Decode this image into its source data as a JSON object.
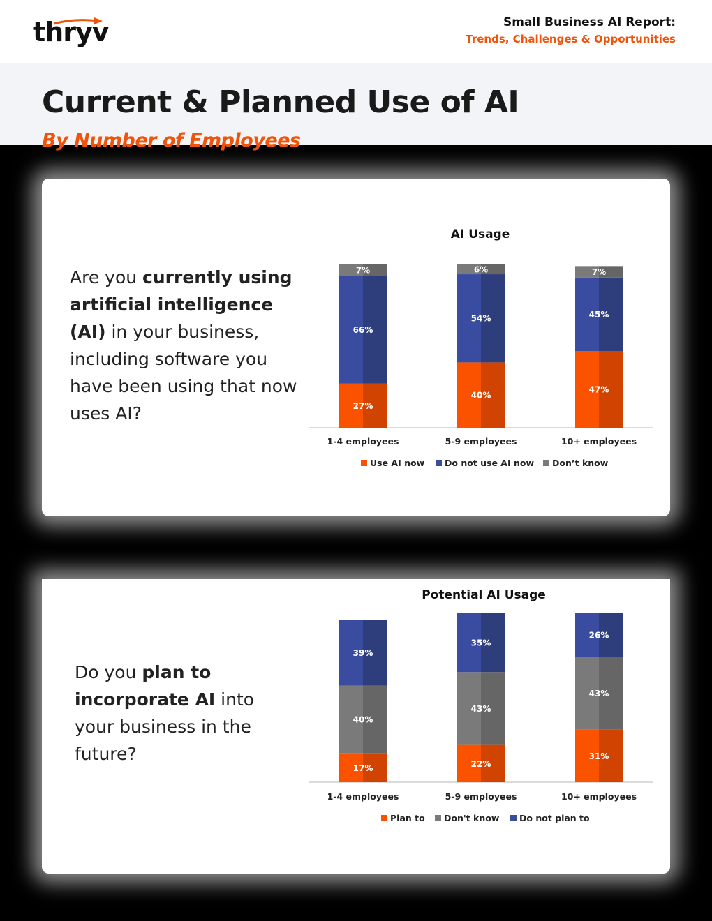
{
  "header": {
    "logo": "thryv",
    "report_title": "Small Business AI Report:",
    "report_subtitle": "Trends, Challenges & Opportunities"
  },
  "page": {
    "title": "Current & Planned Use of AI",
    "subtitle": "By Number of Employees"
  },
  "questions": {
    "q1": {
      "pre": "Are you ",
      "bold": "currently using artificial intelligence (AI)",
      "post": " in your business, including software you have been using that now uses AI?"
    },
    "q2": {
      "pre": "Do you ",
      "bold": "plan to incorporate AI",
      "post": " into your business in the future?"
    }
  },
  "colors": {
    "orange": "#fb5200",
    "orange_dark": "#d04300",
    "navy": "#3a4ca0",
    "navy_dark": "#2e3d7c",
    "gray": "#7a7a7a",
    "gray_dark": "#666666",
    "accent": "#f0530a"
  },
  "chart_data": [
    {
      "type": "bar",
      "stacked": true,
      "title": "AI Usage",
      "categories": [
        "1-4 employees",
        "5-9 employees",
        "10+ employees"
      ],
      "series": [
        {
          "name": "Use AI now",
          "values": [
            27,
            40,
            47
          ],
          "color": "orange"
        },
        {
          "name": "Do not use AI now",
          "values": [
            66,
            54,
            45
          ],
          "color": "navy"
        },
        {
          "name": "Don’t know",
          "values": [
            7,
            6,
            7
          ],
          "color": "gray"
        }
      ],
      "value_suffix": "%",
      "ylim": [
        0,
        100
      ],
      "legend": "bottom"
    },
    {
      "type": "bar",
      "stacked": true,
      "title": "Potential AI Usage",
      "categories": [
        "1-4 employees",
        "5-9 employees",
        "10+ employees"
      ],
      "series": [
        {
          "name": "Plan to",
          "values": [
            17,
            22,
            31
          ],
          "color": "orange"
        },
        {
          "name": "Don't know",
          "values": [
            40,
            43,
            43
          ],
          "color": "gray"
        },
        {
          "name": "Do not plan to",
          "values": [
            39,
            35,
            26
          ],
          "color": "navy"
        }
      ],
      "value_suffix": "%",
      "ylim": [
        0,
        100
      ],
      "legend": "bottom"
    }
  ]
}
